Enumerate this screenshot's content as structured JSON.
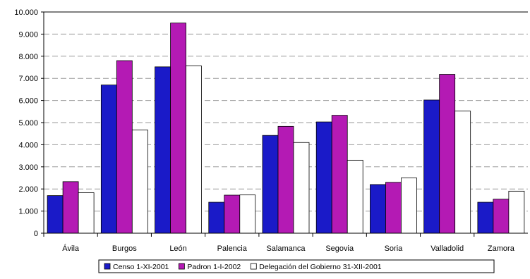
{
  "chart_data": {
    "type": "bar",
    "categories": [
      "Ávila",
      "Burgos",
      "León",
      "Palencia",
      "Salamanca",
      "Segovia",
      "Soria",
      "Valladolid",
      "Zamora"
    ],
    "series": [
      {
        "name": "Censo 1-XI-2001",
        "color": "#1a1ac8",
        "values": [
          1700,
          6700,
          7520,
          1400,
          4420,
          5030,
          2200,
          6020,
          1400
        ]
      },
      {
        "name": "Padron 1-I-2002",
        "color": "#b41ab4",
        "values": [
          2330,
          7800,
          9500,
          1720,
          4830,
          5330,
          2300,
          7180,
          1540
        ]
      },
      {
        "name": "Delegación del Gobierno 31-XII-2001",
        "color": "#ffffff",
        "values": [
          1830,
          4670,
          7560,
          1730,
          4100,
          3300,
          2500,
          5520,
          1900
        ]
      }
    ],
    "ylim": [
      0,
      10000
    ],
    "y_ticks": [
      "0",
      "1.000",
      "2.000",
      "3.000",
      "4.000",
      "5.000",
      "6.000",
      "7.000",
      "8.000",
      "9.000",
      "10.000"
    ],
    "grid": "horizontal dashed",
    "legend_position": "bottom",
    "title": "",
    "xlabel": "",
    "ylabel": ""
  }
}
